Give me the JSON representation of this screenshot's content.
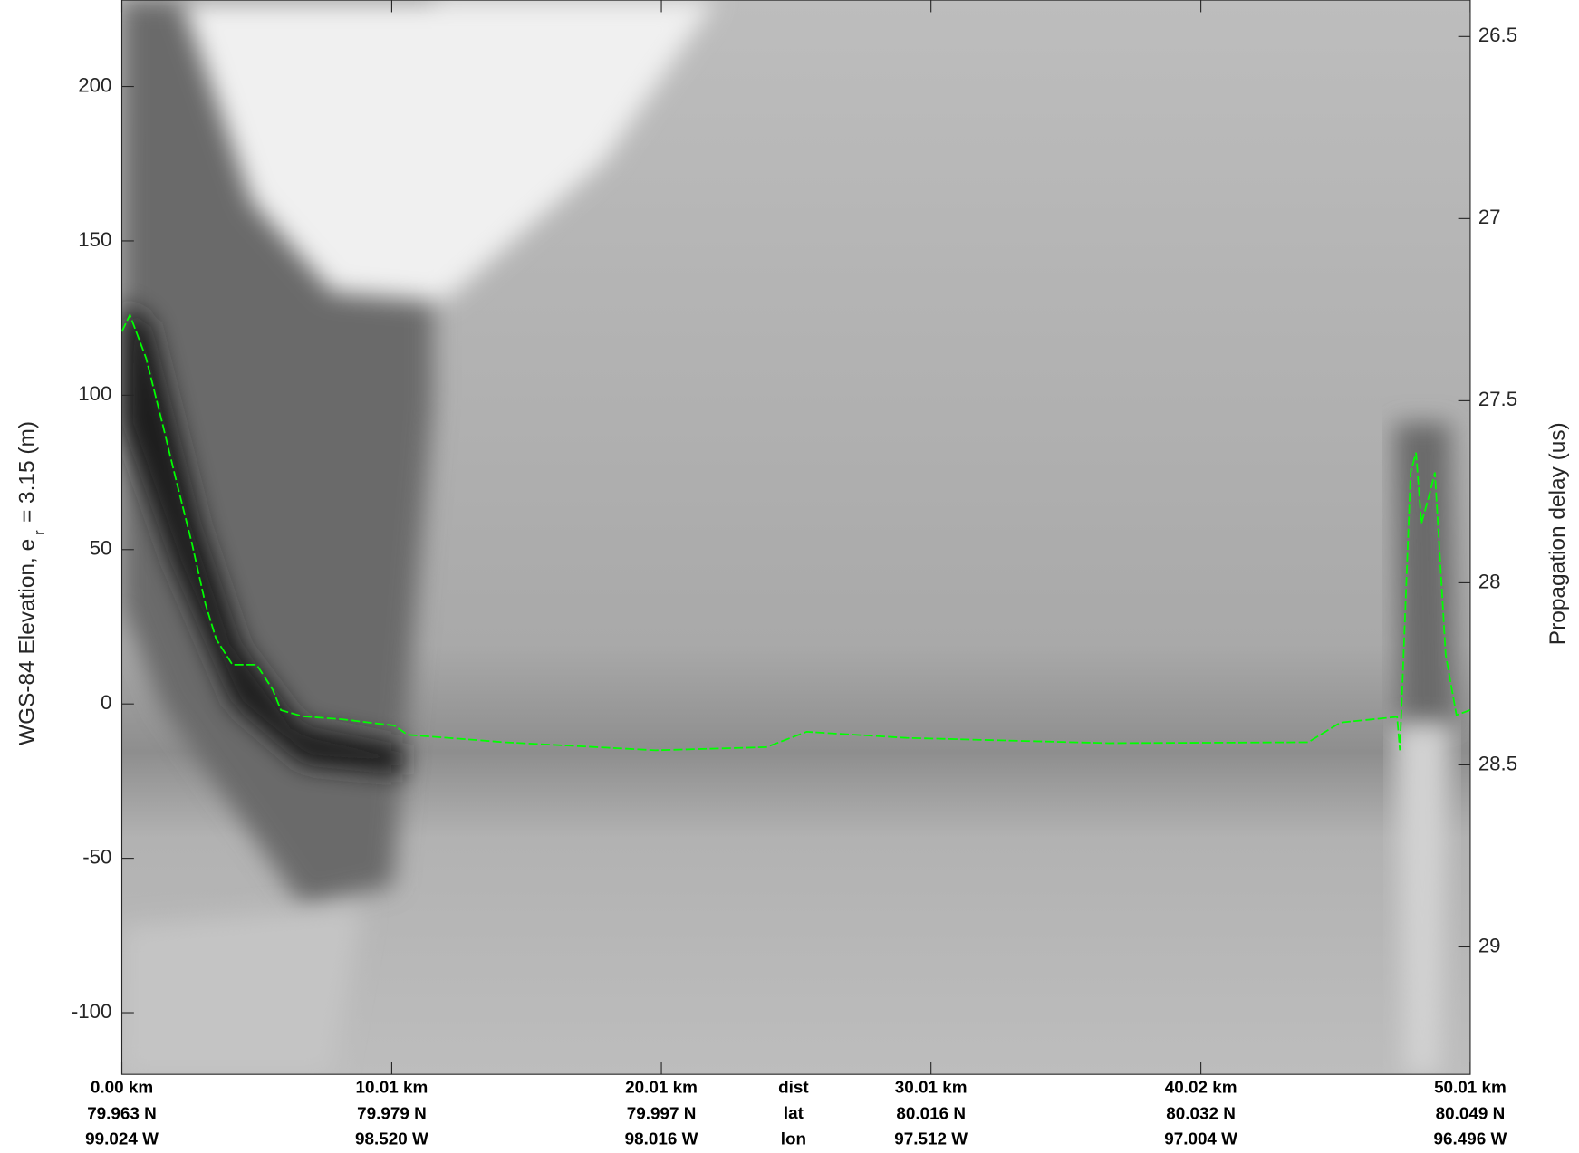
{
  "chart_data": {
    "type": "line",
    "ylabel_main": "WGS-84 Elevation, e",
    "ylabel_sub": "r",
    "ylabel_tail": "= 3.15 (m)",
    "y2label": "Propagation delay (us)",
    "xlim": [
      0,
      50.01
    ],
    "ylim": [
      -120,
      228
    ],
    "y2lim": [
      29.35,
      26.4
    ],
    "yticks": [
      -100,
      -50,
      0,
      50,
      100,
      150,
      200
    ],
    "y2ticks": [
      26.5,
      27,
      27.5,
      28,
      28.5,
      29
    ],
    "xticks": [
      {
        "value": 0,
        "label": "0.00 km"
      },
      {
        "value": 10.01,
        "label": "10.01 km"
      },
      {
        "value": 20.01,
        "label": "20.01 km"
      },
      {
        "value": 30.01,
        "label": "30.01 km"
      },
      {
        "value": 40.02,
        "label": "40.02 km"
      },
      {
        "value": 50.01,
        "label": "50.01 km"
      }
    ],
    "lat_labels": [
      "79.963 N",
      "79.979 N",
      "79.997 N",
      "80.016 N",
      "80.032 N",
      "80.049 N"
    ],
    "lon_labels": [
      "99.024 W",
      "98.520 W",
      "98.016 W",
      "97.512 W",
      "97.004 W",
      "96.496 W"
    ],
    "row_labels": [
      "dist",
      "lat",
      "lon"
    ],
    "series": [
      {
        "color": "#00ff00",
        "x": [
          0,
          0.3,
          0.9,
          1.5,
          2.0,
          2.6,
          3.1,
          3.5,
          4.1,
          5.0,
          5.6,
          5.9,
          6.7,
          8.2,
          10.1,
          10.6,
          14.2,
          19.8,
          23.9,
          25.4,
          29.1,
          36.6,
          44.0,
          45.2,
          47.3,
          47.4,
          47.8,
          48.0,
          48.2,
          48.5,
          48.7,
          48.9,
          49.1,
          49.5,
          50.0
        ],
        "values": [
          120.6,
          126,
          112,
          91,
          73,
          52,
          32.4,
          21,
          12.7,
          12.7,
          4.6,
          -2,
          -4,
          -5,
          -7,
          -10,
          -12.4,
          -15,
          -14,
          -9,
          -11,
          -12.7,
          -12.4,
          -6,
          -4.2,
          -15,
          75,
          81.4,
          58.5,
          68,
          75,
          45.4,
          16,
          -3.6,
          -2
        ]
      }
    ]
  }
}
